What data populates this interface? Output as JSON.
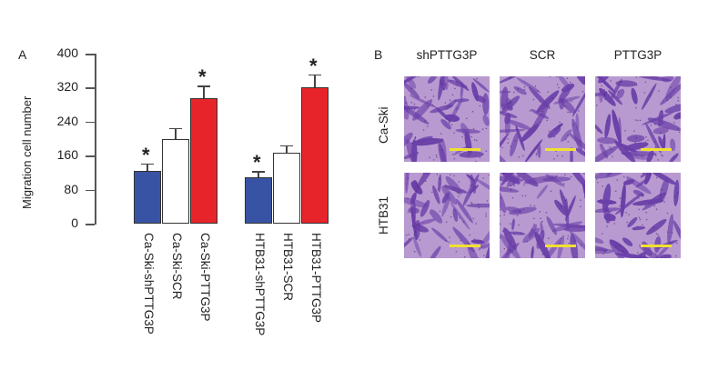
{
  "panel_a": {
    "label": "A"
  },
  "panel_b": {
    "label": "B",
    "columns": [
      "shPTTG3P",
      "SCR",
      "PTTG3P"
    ],
    "rows": [
      "Ca-Ski",
      "HTB31"
    ]
  },
  "colors": {
    "blue": "#3953a4",
    "white": "#ffffff",
    "red": "#e8242b",
    "tile": "#b89ad0",
    "cell": "#6a3fa8",
    "scale": "#f0e030"
  },
  "chart_data": {
    "type": "bar",
    "title": "",
    "xlabel": "",
    "ylabel": "Migration cell number",
    "ylim": [
      0,
      400
    ],
    "yticks": [
      0,
      80,
      160,
      240,
      320,
      400
    ],
    "categories": [
      "Ca-Ski-shPTTG3P",
      "Ca-Ski-SCR",
      "Ca-Ski-PTTG3P",
      "HTB31-shPTTG3P",
      "HTB31-SCR",
      "HTB31-PTTG3P"
    ],
    "values": [
      125,
      200,
      296,
      110,
      166,
      321
    ],
    "error_upper": [
      142,
      225,
      325,
      123,
      185,
      351
    ],
    "significant": [
      true,
      false,
      true,
      true,
      false,
      true
    ],
    "annotation": "*",
    "bar_colors": [
      "#3953a4",
      "#ffffff",
      "#e8242b",
      "#3953a4",
      "#ffffff",
      "#e8242b"
    ],
    "groups": [
      "Ca-Ski",
      "HTB31"
    ],
    "grid": false
  }
}
